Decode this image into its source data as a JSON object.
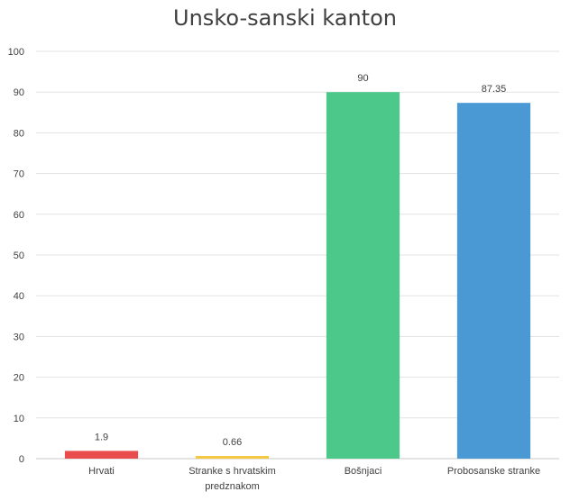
{
  "chart_data": {
    "type": "bar",
    "title": "Unsko-sanski kanton",
    "xlabel": "",
    "ylabel": "",
    "ylim": [
      0,
      100
    ],
    "yticks": [
      0,
      10,
      20,
      30,
      40,
      50,
      60,
      70,
      80,
      90,
      100
    ],
    "grid": true,
    "legend": "none",
    "categories": [
      [
        "Hrvati"
      ],
      [
        "Stranke s hrvatskim",
        "predznakom"
      ],
      [
        "Bošnjaci"
      ],
      [
        "Probosanske stranke"
      ]
    ],
    "values": [
      1.9,
      0.66,
      90,
      87.35
    ],
    "value_labels": [
      "1.9",
      "0.66",
      "90",
      "87.35"
    ],
    "colors": [
      "#e84c4c",
      "#f5c842",
      "#4cc98a",
      "#4a98d4"
    ]
  }
}
